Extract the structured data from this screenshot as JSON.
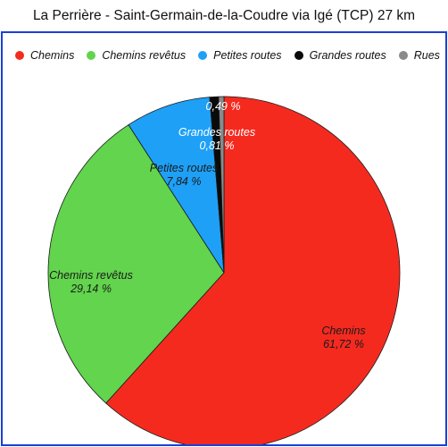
{
  "title": "La Perrière - Saint-Germain-de-la-Coudre via Igé (TCP) 27 km",
  "chart_data": {
    "type": "pie",
    "categories": [
      "Chemins",
      "Chemins revêtus",
      "Petites routes",
      "Grandes routes",
      "Rues"
    ],
    "values": [
      61.72,
      29.14,
      7.84,
      0.81,
      0.49
    ],
    "labels": [
      "61,72 %",
      "29,14 %",
      "7,84 %",
      "0,81 %",
      "0,49 %"
    ],
    "colors": [
      "#f52a1f",
      "#62d44d",
      "#1ea0f7",
      "#0a0a0a",
      "#8a8a8a"
    ],
    "label_colors": [
      "#1a1a1a",
      "#1a1a1a",
      "#1a1a1a",
      "#ffffff",
      "#ffffff"
    ],
    "legend_position": "top"
  }
}
